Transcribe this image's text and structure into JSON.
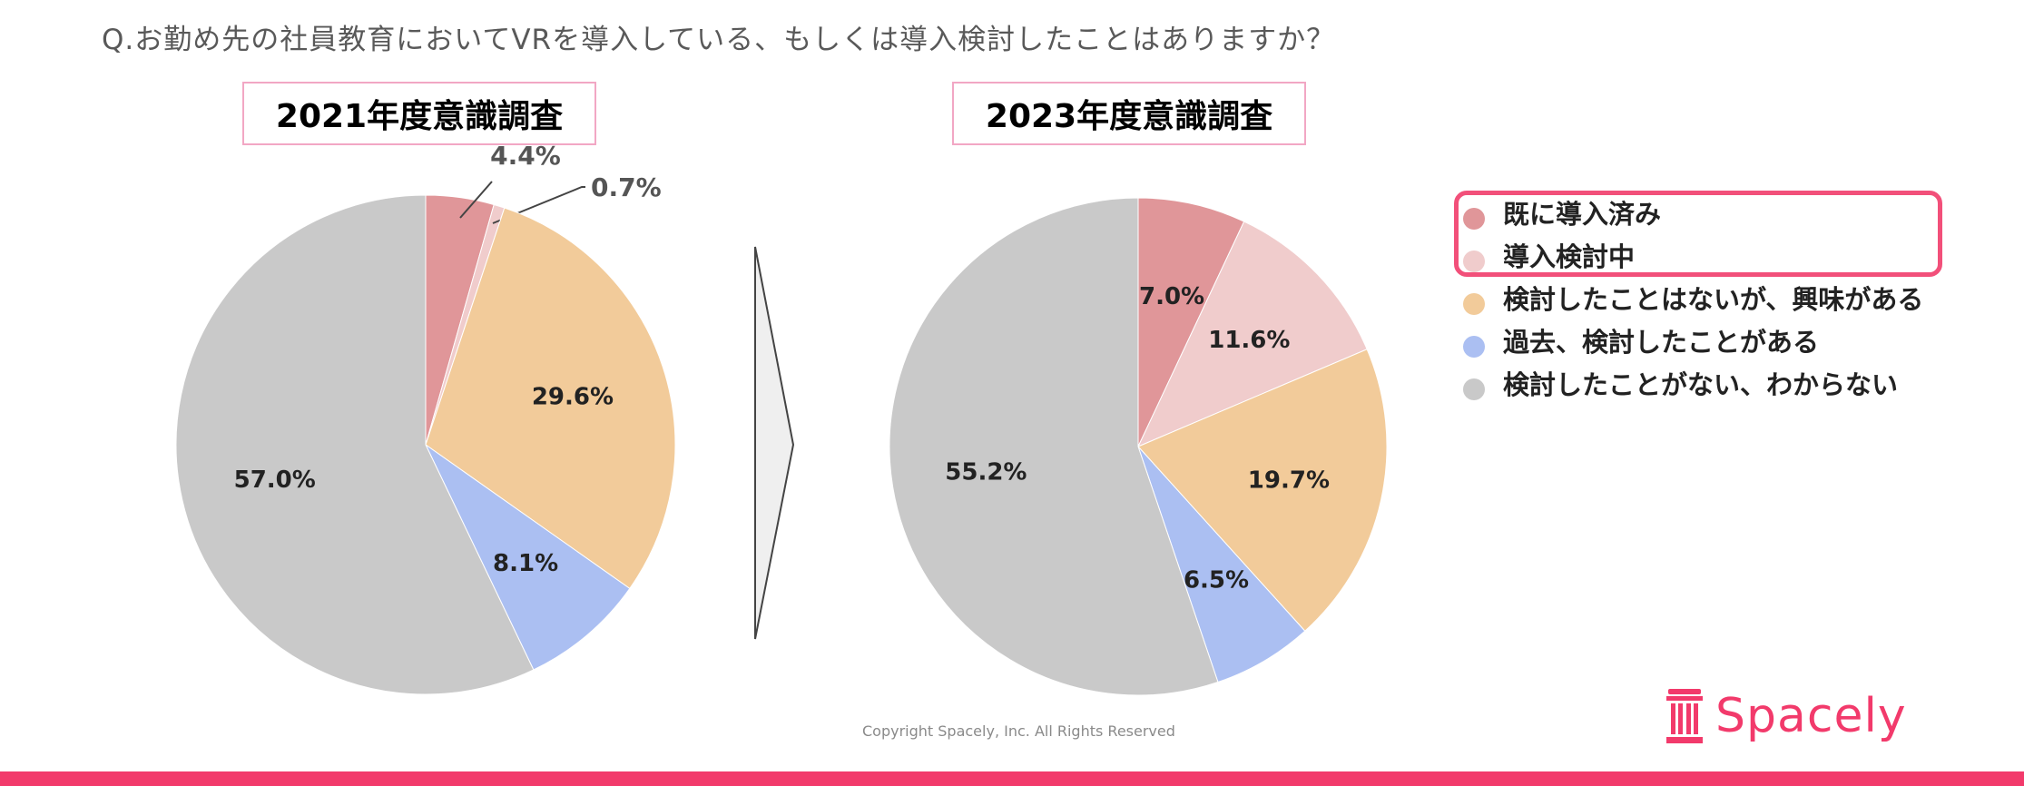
{
  "question": "Q.お勤め先の社員教育においてVRを導入している、もしくは導入検討したことはありますか？",
  "copyright": "Copyright Spacely, Inc. All Rights Reserved",
  "logo": {
    "text": "Spacely",
    "icon": "pillar-icon",
    "color": "#f23a6b"
  },
  "colors": {
    "introduced": "#e09699",
    "considering": "#f0cccc",
    "interested": "#f2cb9a",
    "past": "#abbff2",
    "none": "#c9c9c9",
    "accent": "#f23a6b"
  },
  "legend": {
    "items": [
      {
        "label": "既に導入済み",
        "color": "#e09699"
      },
      {
        "label": "導入検討中",
        "color": "#f0cccc"
      },
      {
        "label": "検討したことはないが、興味がある",
        "color": "#f2cb9a"
      },
      {
        "label": "過去、検討したことがある",
        "color": "#abbff2"
      },
      {
        "label": "検討したことがない、わからない",
        "color": "#c9c9c9"
      }
    ]
  },
  "chart_data": [
    {
      "type": "pie",
      "title": "2021年度意識調査",
      "categories": [
        "既に導入済み",
        "導入検討中",
        "検討したことはないが、興味がある",
        "過去、検討したことがある",
        "検討したことがない、わからない"
      ],
      "values": [
        4.4,
        0.7,
        29.6,
        8.1,
        57.0
      ],
      "labels": [
        "4.4%",
        "0.7%",
        "29.6%",
        "8.1%",
        "57.0%"
      ],
      "colors": [
        "#e09699",
        "#f0cccc",
        "#f2cb9a",
        "#abbff2",
        "#c9c9c9"
      ],
      "unit": "%"
    },
    {
      "type": "pie",
      "title": "2023年度意識調査",
      "categories": [
        "既に導入済み",
        "導入検討中",
        "検討したことはないが、興味がある",
        "過去、検討したことがある",
        "検討したことがない、わからない"
      ],
      "values": [
        7.0,
        11.6,
        19.7,
        6.5,
        55.2
      ],
      "labels": [
        "7.0%",
        "11.6%",
        "19.7%",
        "6.5%",
        "55.2%"
      ],
      "colors": [
        "#e09699",
        "#f0cccc",
        "#f2cb9a",
        "#abbff2",
        "#c9c9c9"
      ],
      "unit": "%"
    }
  ]
}
